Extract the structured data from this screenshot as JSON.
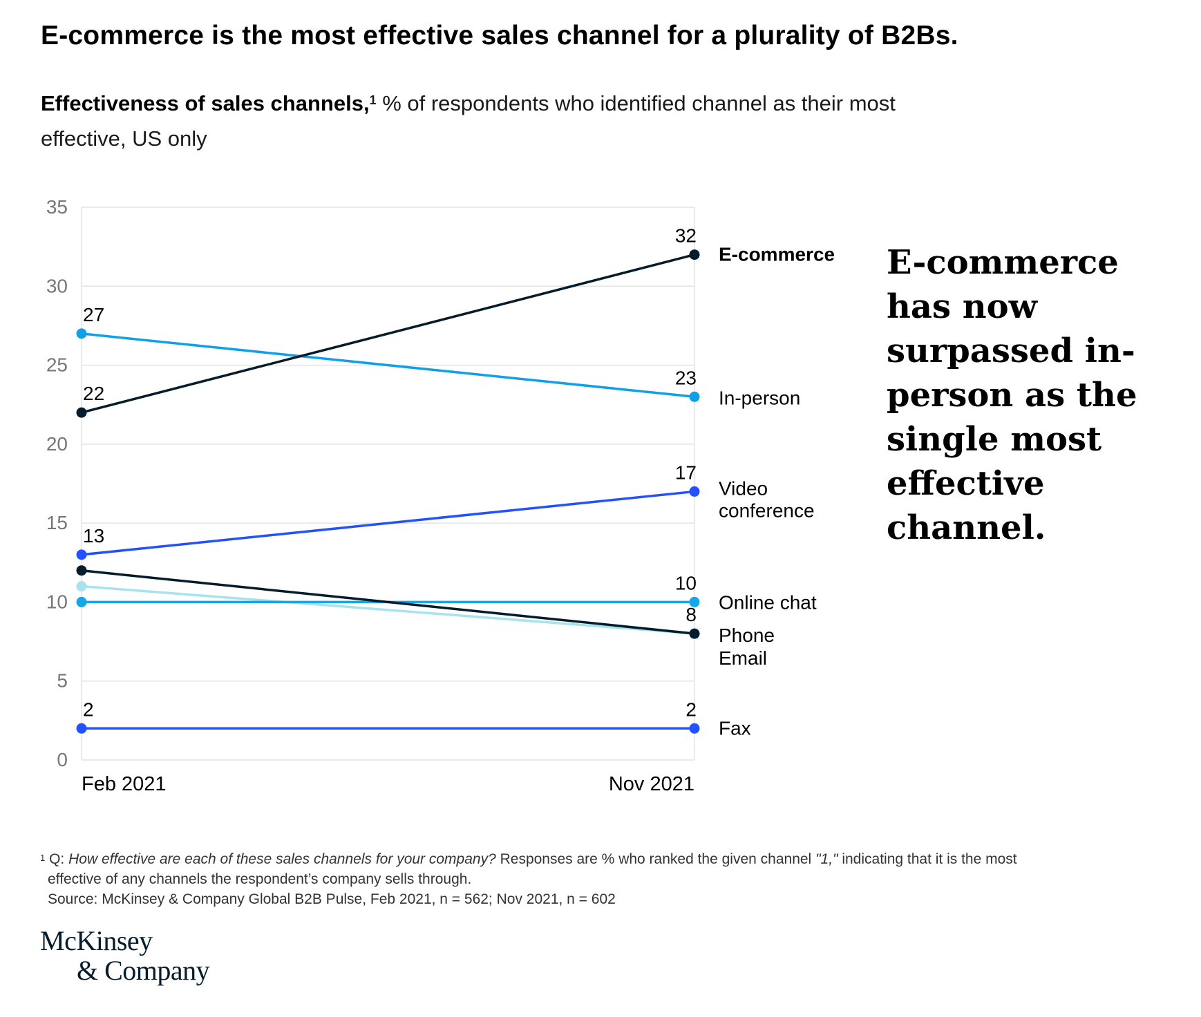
{
  "title": "E-commerce is the most effective sales channel for a plurality of B2Bs.",
  "subtitle": {
    "bold": "Effectiveness of sales channels,",
    "footnote_marker": "1",
    "rest": " % of respondents who identified channel as their most effective, US only"
  },
  "callout": "E-commerce has now surpassed in-person as the single most effective channel.",
  "footnote": {
    "marker": "1",
    "q_prefix": "Q: ",
    "q_italic": "How effective are each of these sales channels for your company?",
    "q_mid": " Responses are % who ranked the given channel ",
    "q_quote": "\"1,\"",
    "q_end": " indicating that it is the most",
    "q_line2": "effective of any channels the respondent’s company sells through.",
    "source": "Source: McKinsey & Company Global B2B Pulse, Feb 2021, n = 562; Nov 2021, n = 602"
  },
  "logo": {
    "line1": "McKinsey",
    "line2": "& Company"
  },
  "chart_data": {
    "type": "line",
    "x": [
      "Feb 2021",
      "Nov 2021"
    ],
    "ylim": [
      0,
      35
    ],
    "yticks": [
      0,
      5,
      10,
      15,
      20,
      25,
      30,
      35
    ],
    "grid": true,
    "legend": "direct labels at right end of lines",
    "series": [
      {
        "name": "E-commerce",
        "values": [
          22,
          32
        ],
        "color": "#051c2c",
        "labels": [
          "22",
          "32"
        ],
        "bold": true
      },
      {
        "name": "In-person",
        "values": [
          27,
          23
        ],
        "color": "#0fa0e8",
        "labels": [
          "27",
          "23"
        ]
      },
      {
        "name": "Video conference",
        "values": [
          13,
          17
        ],
        "color": "#2251ff",
        "labels": [
          "13",
          "17"
        ]
      },
      {
        "name": "Online chat",
        "values": [
          10,
          10
        ],
        "color": "#14a6e6",
        "labels": [
          "",
          "10"
        ]
      },
      {
        "name": "Phone",
        "values": [
          12,
          8
        ],
        "color": "#051c2c",
        "labels": [
          "",
          "8"
        ]
      },
      {
        "name": "Email",
        "values": [
          11,
          8
        ],
        "color": "#a7e3ee",
        "labels": [
          "",
          ""
        ]
      },
      {
        "name": "Fax",
        "values": [
          2,
          2
        ],
        "color": "#2251ff",
        "labels": [
          "2",
          "2"
        ]
      }
    ],
    "end_labels": [
      "E-commerce",
      "In-person",
      "Video conference",
      "Online chat",
      "Phone",
      "Email",
      "Fax"
    ]
  }
}
